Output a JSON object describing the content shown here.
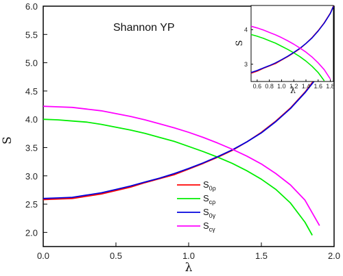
{
  "chart_data": [
    {
      "type": "line",
      "title": "Shannon YP",
      "xlabel": "λ",
      "ylabel": "S",
      "xlim": [
        0.0,
        2.0
      ],
      "ylim": [
        1.75,
        6.0
      ],
      "xticks": [
        "0.0",
        "0.5",
        "1.0",
        "1.5",
        "2.0"
      ],
      "yticks": [
        "2.0",
        "2.5",
        "3.0",
        "3.5",
        "4.0",
        "4.5",
        "5.0",
        "5.5",
        "6.0"
      ],
      "legend_position": "lower-center",
      "series": [
        {
          "name": "S0ρ",
          "base": "S",
          "sub": "0ρ",
          "color": "#ff0000",
          "x": [
            0.0,
            0.1,
            0.2,
            0.3,
            0.4,
            0.5,
            0.6,
            0.7,
            0.8,
            0.9,
            1.0,
            1.1,
            1.2,
            1.3,
            1.4,
            1.5,
            1.6,
            1.7,
            1.8,
            1.88
          ],
          "y": [
            2.58,
            2.59,
            2.6,
            2.64,
            2.68,
            2.74,
            2.8,
            2.88,
            2.95,
            3.02,
            3.12,
            3.22,
            3.33,
            3.45,
            3.6,
            3.77,
            3.97,
            4.2,
            4.48,
            4.75
          ]
        },
        {
          "name": "Scρ",
          "base": "S",
          "sub": "cρ",
          "color": "#00ee00",
          "x": [
            0.0,
            0.1,
            0.2,
            0.3,
            0.4,
            0.5,
            0.6,
            0.7,
            0.8,
            0.9,
            1.0,
            1.1,
            1.2,
            1.3,
            1.4,
            1.5,
            1.6,
            1.7,
            1.8,
            1.85
          ],
          "y": [
            4.0,
            3.99,
            3.97,
            3.95,
            3.91,
            3.86,
            3.81,
            3.75,
            3.68,
            3.61,
            3.52,
            3.43,
            3.33,
            3.22,
            3.09,
            2.94,
            2.76,
            2.52,
            2.18,
            1.95
          ]
        },
        {
          "name": "S0γ",
          "base": "S",
          "sub": "0γ",
          "color": "#0000dd",
          "x": [
            0.0,
            0.1,
            0.2,
            0.3,
            0.4,
            0.5,
            0.6,
            0.7,
            0.8,
            0.9,
            1.0,
            1.1,
            1.2,
            1.3,
            1.4,
            1.5,
            1.6,
            1.7,
            1.8,
            1.88
          ],
          "y": [
            2.6,
            2.61,
            2.62,
            2.66,
            2.7,
            2.76,
            2.82,
            2.89,
            2.96,
            3.04,
            3.13,
            3.23,
            3.34,
            3.46,
            3.6,
            3.76,
            3.96,
            4.19,
            4.47,
            4.73
          ]
        },
        {
          "name": "Scγ",
          "base": "S",
          "sub": "cγ",
          "color": "#ff00ff",
          "x": [
            0.0,
            0.1,
            0.2,
            0.3,
            0.4,
            0.5,
            0.6,
            0.7,
            0.8,
            0.9,
            1.0,
            1.1,
            1.2,
            1.3,
            1.4,
            1.5,
            1.6,
            1.7,
            1.8,
            1.9
          ],
          "y": [
            4.23,
            4.22,
            4.21,
            4.18,
            4.15,
            4.1,
            4.05,
            3.99,
            3.92,
            3.85,
            3.77,
            3.68,
            3.58,
            3.47,
            3.35,
            3.21,
            3.04,
            2.84,
            2.57,
            2.12
          ]
        }
      ]
    },
    {
      "type": "line",
      "title": "",
      "xlabel": "λ",
      "ylabel": "S",
      "xlim": [
        0.5,
        1.85
      ],
      "ylim": [
        2.5,
        4.7
      ],
      "xticks": [
        "0.6",
        "0.8",
        "1.0",
        "1.2",
        "1.4",
        "1.6",
        "1.8"
      ],
      "yticks": [
        "3",
        "4"
      ],
      "series": [
        {
          "color": "#ff0000",
          "x": [
            0.5,
            0.6,
            0.7,
            0.8,
            0.9,
            1.0,
            1.1,
            1.2,
            1.3,
            1.4,
            1.5,
            1.6,
            1.7,
            1.8,
            1.85
          ],
          "y": [
            2.74,
            2.8,
            2.88,
            2.95,
            3.02,
            3.12,
            3.22,
            3.33,
            3.45,
            3.6,
            3.77,
            3.97,
            4.2,
            4.48,
            4.68
          ]
        },
        {
          "color": "#00ee00",
          "x": [
            0.5,
            0.6,
            0.7,
            0.8,
            0.9,
            1.0,
            1.1,
            1.2,
            1.3,
            1.4,
            1.5,
            1.6,
            1.7
          ],
          "y": [
            3.86,
            3.81,
            3.75,
            3.68,
            3.61,
            3.52,
            3.43,
            3.33,
            3.22,
            3.09,
            2.94,
            2.76,
            2.52
          ]
        },
        {
          "color": "#0000dd",
          "x": [
            0.5,
            0.6,
            0.7,
            0.8,
            0.9,
            1.0,
            1.1,
            1.2,
            1.3,
            1.4,
            1.5,
            1.6,
            1.7,
            1.8,
            1.85
          ],
          "y": [
            2.76,
            2.82,
            2.89,
            2.96,
            3.04,
            3.13,
            3.23,
            3.34,
            3.46,
            3.6,
            3.76,
            3.96,
            4.19,
            4.47,
            4.67
          ]
        },
        {
          "color": "#ff00ff",
          "x": [
            0.5,
            0.6,
            0.7,
            0.8,
            0.9,
            1.0,
            1.1,
            1.2,
            1.3,
            1.4,
            1.5,
            1.6,
            1.7,
            1.8
          ],
          "y": [
            4.1,
            4.05,
            3.99,
            3.92,
            3.85,
            3.77,
            3.68,
            3.58,
            3.47,
            3.35,
            3.21,
            3.04,
            2.84,
            2.57
          ]
        }
      ]
    }
  ]
}
